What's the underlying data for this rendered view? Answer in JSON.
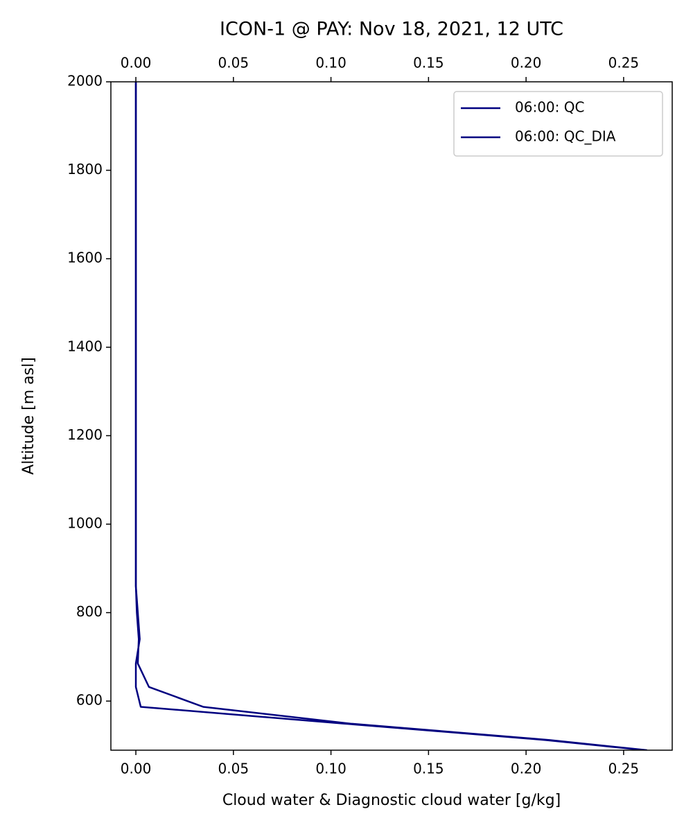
{
  "chart_data": {
    "type": "line",
    "title": "ICON-1 @ PAY: Nov 18, 2021, 12 UTC",
    "x_label": "Cloud water & Diagnostic cloud water [g/kg]",
    "y_label": "Altitude [m asl]",
    "y": [
      2000,
      1800,
      1600,
      1400,
      1200,
      1000,
      860,
      800,
      740,
      685,
      632,
      587,
      549,
      512,
      489
    ],
    "series": [
      {
        "name": "06:00: QC",
        "color": "#000080",
        "values": [
          0,
          0,
          0,
          0,
          0,
          0,
          0,
          0.0005,
          0.0015,
          0.001,
          0.0067,
          0.0345,
          0.11,
          0.212,
          0.262
        ]
      },
      {
        "name": "06:00: QC_DIA",
        "color": "#000080",
        "values": [
          0,
          0,
          0,
          0,
          0,
          0,
          0,
          0.001,
          0.002,
          0,
          0,
          0.0025,
          0.107,
          0.21,
          0.261
        ]
      }
    ],
    "xlim": [
      -0.0128,
      0.2749
    ],
    "xticks": [
      {
        "value": 0,
        "label": "0.00"
      },
      {
        "value": 0.05,
        "label": "0.05"
      },
      {
        "value": 0.1,
        "label": "0.10"
      },
      {
        "value": 0.15,
        "label": "0.15"
      },
      {
        "value": 0.2,
        "label": "0.20"
      },
      {
        "value": 0.25,
        "label": "0.25"
      }
    ],
    "x2lim": [
      -0.0128,
      0.2749
    ],
    "x2ticks": [
      {
        "value": 0,
        "label": "0.00"
      },
      {
        "value": 0.05,
        "label": "0.05"
      },
      {
        "value": 0.1,
        "label": "0.10"
      },
      {
        "value": 0.15,
        "label": "0.15"
      },
      {
        "value": 0.2,
        "label": "0.20"
      },
      {
        "value": 0.25,
        "label": "0.25"
      }
    ],
    "ylim": [
      489,
      2000
    ],
    "yticks": [
      600,
      800,
      1000,
      1200,
      1400,
      1600,
      1800,
      2000
    ],
    "legend": "upper right",
    "grid": false
  }
}
